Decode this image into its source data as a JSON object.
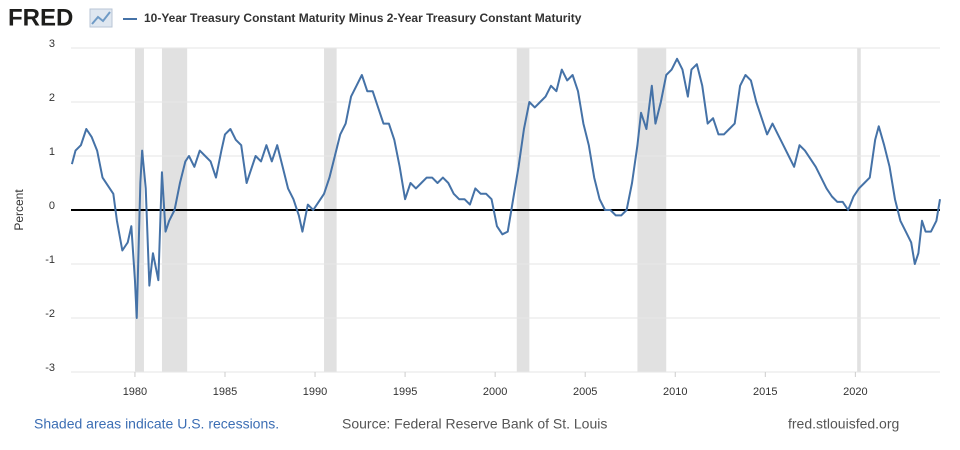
{
  "chart_data": {
    "type": "line",
    "logo": "FRED",
    "ylabel": "Percent",
    "notes": [
      "Shaded areas indicate U.S. recessions.",
      "Source: Federal Reserve Bank of St. Louis",
      "fred.stlouisfed.org"
    ],
    "xlim": [
      1976.45,
      2024.7
    ],
    "xticks": [
      1980,
      1985,
      1990,
      1995,
      2000,
      2005,
      2010,
      2015,
      2020
    ],
    "ylim": [
      -3,
      3
    ],
    "yticks": [
      -3,
      -2,
      -1,
      0,
      1,
      2,
      3
    ],
    "grid": true,
    "reference_line": 0,
    "recession_color": "#e1e1e1",
    "recessions": [
      [
        1980.0,
        1980.5
      ],
      [
        1981.5,
        1982.9
      ],
      [
        1990.5,
        1991.2
      ],
      [
        2001.2,
        2001.9
      ],
      [
        2007.9,
        2009.5
      ],
      [
        2020.1,
        2020.3
      ]
    ],
    "x": [
      1976.5,
      1976.7,
      1977.0,
      1977.3,
      1977.6,
      1977.9,
      1978.2,
      1978.5,
      1978.8,
      1979.0,
      1979.3,
      1979.6,
      1979.8,
      1980.0,
      1980.1,
      1980.3,
      1980.4,
      1980.6,
      1980.8,
      1981.0,
      1981.3,
      1981.5,
      1981.7,
      1981.9,
      1982.2,
      1982.5,
      1982.8,
      1983.0,
      1983.3,
      1983.6,
      1983.9,
      1984.2,
      1984.5,
      1984.8,
      1985.0,
      1985.3,
      1985.6,
      1985.9,
      1986.2,
      1986.4,
      1986.7,
      1987.0,
      1987.3,
      1987.6,
      1987.9,
      1988.2,
      1988.5,
      1988.8,
      1989.1,
      1989.3,
      1989.6,
      1989.9,
      1990.2,
      1990.5,
      1990.8,
      1991.1,
      1991.4,
      1991.7,
      1992.0,
      1992.3,
      1992.6,
      1992.9,
      1993.2,
      1993.5,
      1993.8,
      1994.1,
      1994.4,
      1994.7,
      1995.0,
      1995.3,
      1995.6,
      1995.9,
      1996.2,
      1996.5,
      1996.8,
      1997.1,
      1997.4,
      1997.7,
      1998.0,
      1998.3,
      1998.6,
      1998.9,
      1999.2,
      1999.5,
      1999.8,
      2000.1,
      2000.4,
      2000.7,
      2001.0,
      2001.3,
      2001.6,
      2001.9,
      2002.2,
      2002.5,
      2002.8,
      2003.1,
      2003.4,
      2003.7,
      2004.0,
      2004.3,
      2004.6,
      2004.9,
      2005.2,
      2005.5,
      2005.8,
      2006.1,
      2006.4,
      2006.7,
      2007.0,
      2007.3,
      2007.6,
      2007.9,
      2008.1,
      2008.4,
      2008.7,
      2008.9,
      2009.2,
      2009.5,
      2009.8,
      2010.1,
      2010.4,
      2010.7,
      2010.9,
      2011.2,
      2011.5,
      2011.8,
      2012.1,
      2012.4,
      2012.7,
      2013.0,
      2013.3,
      2013.6,
      2013.9,
      2014.2,
      2014.5,
      2014.8,
      2015.1,
      2015.4,
      2015.7,
      2016.0,
      2016.3,
      2016.6,
      2016.9,
      2017.2,
      2017.5,
      2017.8,
      2018.1,
      2018.4,
      2018.7,
      2019.0,
      2019.3,
      2019.6,
      2019.9,
      2020.2,
      2020.5,
      2020.8,
      2021.1,
      2021.3,
      2021.6,
      2021.9,
      2022.2,
      2022.5,
      2022.8,
      2023.1,
      2023.3,
      2023.5,
      2023.7,
      2023.9,
      2024.2,
      2024.5,
      2024.7
    ],
    "series": [
      {
        "name": "10-Year Treasury Constant Maturity Minus 2-Year Treasury Constant Maturity",
        "color": "#4572a7",
        "values": [
          0.85,
          1.1,
          1.2,
          1.5,
          1.35,
          1.1,
          0.6,
          0.45,
          0.3,
          -0.2,
          -0.75,
          -0.6,
          -0.3,
          -1.3,
          -2.0,
          0.5,
          1.1,
          0.4,
          -1.4,
          -0.8,
          -1.3,
          0.7,
          -0.4,
          -0.2,
          0.0,
          0.5,
          0.9,
          1.0,
          0.8,
          1.1,
          1.0,
          0.9,
          0.6,
          1.1,
          1.4,
          1.5,
          1.3,
          1.2,
          0.5,
          0.7,
          1.0,
          0.9,
          1.2,
          0.9,
          1.2,
          0.8,
          0.4,
          0.2,
          -0.1,
          -0.4,
          0.1,
          0.0,
          0.15,
          0.3,
          0.6,
          1.0,
          1.4,
          1.6,
          2.1,
          2.3,
          2.5,
          2.2,
          2.2,
          1.9,
          1.6,
          1.6,
          1.3,
          0.8,
          0.2,
          0.5,
          0.4,
          0.5,
          0.6,
          0.6,
          0.5,
          0.6,
          0.5,
          0.3,
          0.2,
          0.2,
          0.1,
          0.4,
          0.3,
          0.3,
          0.2,
          -0.3,
          -0.45,
          -0.4,
          0.2,
          0.8,
          1.5,
          2.0,
          1.9,
          2.0,
          2.1,
          2.3,
          2.2,
          2.6,
          2.4,
          2.5,
          2.2,
          1.6,
          1.2,
          0.6,
          0.2,
          0.0,
          0.0,
          -0.1,
          -0.1,
          0.0,
          0.5,
          1.2,
          1.8,
          1.5,
          2.3,
          1.6,
          2.0,
          2.5,
          2.6,
          2.8,
          2.6,
          2.1,
          2.6,
          2.7,
          2.3,
          1.6,
          1.7,
          1.4,
          1.4,
          1.5,
          1.6,
          2.3,
          2.5,
          2.4,
          2.0,
          1.7,
          1.4,
          1.6,
          1.4,
          1.2,
          1.0,
          0.8,
          1.2,
          1.1,
          0.95,
          0.8,
          0.6,
          0.4,
          0.25,
          0.15,
          0.15,
          0.0,
          0.25,
          0.4,
          0.5,
          0.6,
          1.3,
          1.55,
          1.2,
          0.8,
          0.2,
          -0.2,
          -0.4,
          -0.6,
          -1.0,
          -0.8,
          -0.2,
          -0.4,
          -0.4,
          -0.2,
          0.2
        ]
      }
    ]
  }
}
